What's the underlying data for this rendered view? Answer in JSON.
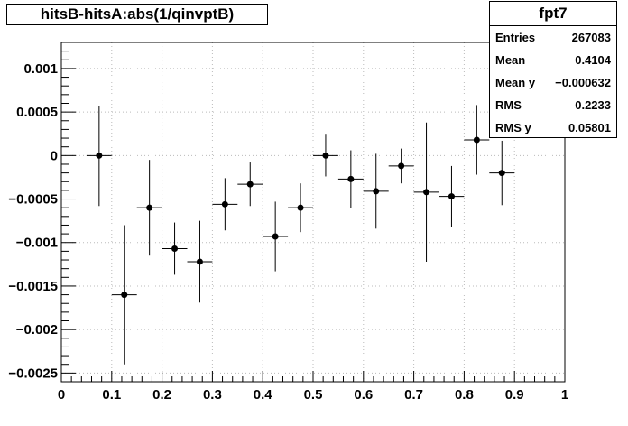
{
  "chart_data": {
    "type": "scatter",
    "title": "hitsB-hitsA:abs(1/qinvptB)",
    "xlim": [
      0,
      1
    ],
    "ylim": [
      -0.0026,
      0.0013
    ],
    "x_ticks": [
      "0",
      "0.1",
      "0.2",
      "0.3",
      "0.4",
      "0.5",
      "0.6",
      "0.7",
      "0.8",
      "0.9",
      "1"
    ],
    "y_ticks": [
      "0.001",
      "0.0005",
      "0",
      "−0.0005",
      "−0.001",
      "−0.0015",
      "−0.002",
      "−0.0025"
    ],
    "grid": true,
    "points": [
      {
        "x": 0.075,
        "y": 0.0,
        "yerr_low": 0.00058,
        "yerr_high": 0.00057
      },
      {
        "x": 0.125,
        "y": -0.0016,
        "yerr_low": 0.0008,
        "yerr_high": 0.0008
      },
      {
        "x": 0.175,
        "y": -0.0006,
        "yerr_low": 0.00055,
        "yerr_high": 0.00055
      },
      {
        "x": 0.225,
        "y": -0.00107,
        "yerr_low": 0.0003,
        "yerr_high": 0.0003
      },
      {
        "x": 0.275,
        "y": -0.00122,
        "yerr_low": 0.00047,
        "yerr_high": 0.00047
      },
      {
        "x": 0.325,
        "y": -0.00056,
        "yerr_low": 0.0003,
        "yerr_high": 0.0003
      },
      {
        "x": 0.375,
        "y": -0.00033,
        "yerr_low": 0.00025,
        "yerr_high": 0.00025
      },
      {
        "x": 0.425,
        "y": -0.00093,
        "yerr_low": 0.0004,
        "yerr_high": 0.0004
      },
      {
        "x": 0.475,
        "y": -0.0006,
        "yerr_low": 0.00028,
        "yerr_high": 0.00028
      },
      {
        "x": 0.525,
        "y": 0.0,
        "yerr_low": 0.00024,
        "yerr_high": 0.00024
      },
      {
        "x": 0.575,
        "y": -0.00027,
        "yerr_low": 0.00033,
        "yerr_high": 0.00033
      },
      {
        "x": 0.625,
        "y": -0.00041,
        "yerr_low": 0.00043,
        "yerr_high": 0.00043
      },
      {
        "x": 0.675,
        "y": -0.00012,
        "yerr_low": 0.0002,
        "yerr_high": 0.0002
      },
      {
        "x": 0.725,
        "y": -0.00042,
        "yerr_low": 0.0008,
        "yerr_high": 0.0008
      },
      {
        "x": 0.775,
        "y": -0.00047,
        "yerr_low": 0.00035,
        "yerr_high": 0.00035
      },
      {
        "x": 0.825,
        "y": 0.00018,
        "yerr_low": 0.0004,
        "yerr_high": 0.0004
      },
      {
        "x": 0.875,
        "y": -0.0002,
        "yerr_low": 0.00037,
        "yerr_high": 0.00037
      }
    ],
    "x_bin_half_width": 0.025
  },
  "stats": {
    "name": "fpt7",
    "rows": [
      {
        "label": "Entries",
        "value": "267083"
      },
      {
        "label": "Mean",
        "value": "0.4104"
      },
      {
        "label": "Mean y",
        "value": "−0.000632"
      },
      {
        "label": "RMS",
        "value": "0.2233"
      },
      {
        "label": "RMS y",
        "value": "0.05801"
      }
    ]
  }
}
